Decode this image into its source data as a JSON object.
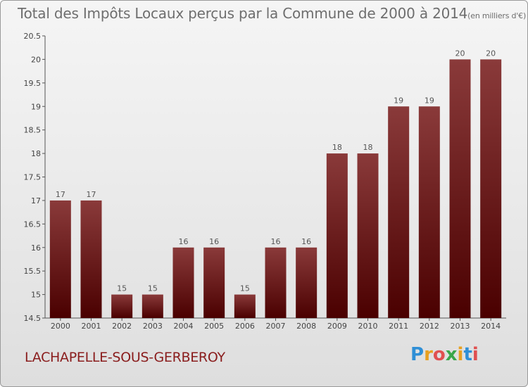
{
  "header": {
    "title": "Total des Impôts Locaux perçus par la Commune de 2000 à 2014",
    "unit": "(en milliers d'€)"
  },
  "footer": {
    "commune": "LACHAPELLE-SOUS-GERBEROY",
    "logo_letters": [
      "P",
      "r",
      "o",
      "x",
      "i",
      "t",
      "i"
    ],
    "logo_colors": [
      "#2f8fd6",
      "#e8a020",
      "#e05050",
      "#3aa64a",
      "#e8a020",
      "#2f8fd6",
      "#e05050"
    ]
  },
  "chart_data": {
    "type": "bar",
    "title": "Total des Impôts Locaux perçus par la Commune de 2000 à 2014",
    "ylabel": "(en milliers d'€)",
    "xlabel": "",
    "categories": [
      "2000",
      "2001",
      "2002",
      "2003",
      "2004",
      "2005",
      "2006",
      "2007",
      "2008",
      "2009",
      "2010",
      "2011",
      "2012",
      "2013",
      "2014"
    ],
    "values": [
      17,
      17,
      15,
      15,
      16,
      16,
      15,
      16,
      16,
      18,
      18,
      19,
      19,
      20,
      20
    ],
    "ylim": [
      14.5,
      20.5
    ],
    "yticks": [
      "14.5",
      "15",
      "15.5",
      "16",
      "16.5",
      "17",
      "17.5",
      "18",
      "18.5",
      "19",
      "19.5",
      "20",
      "20.5"
    ],
    "grid": false,
    "bar_color_top": "#8a3a3a",
    "bar_color_bottom": "#4a0000"
  }
}
